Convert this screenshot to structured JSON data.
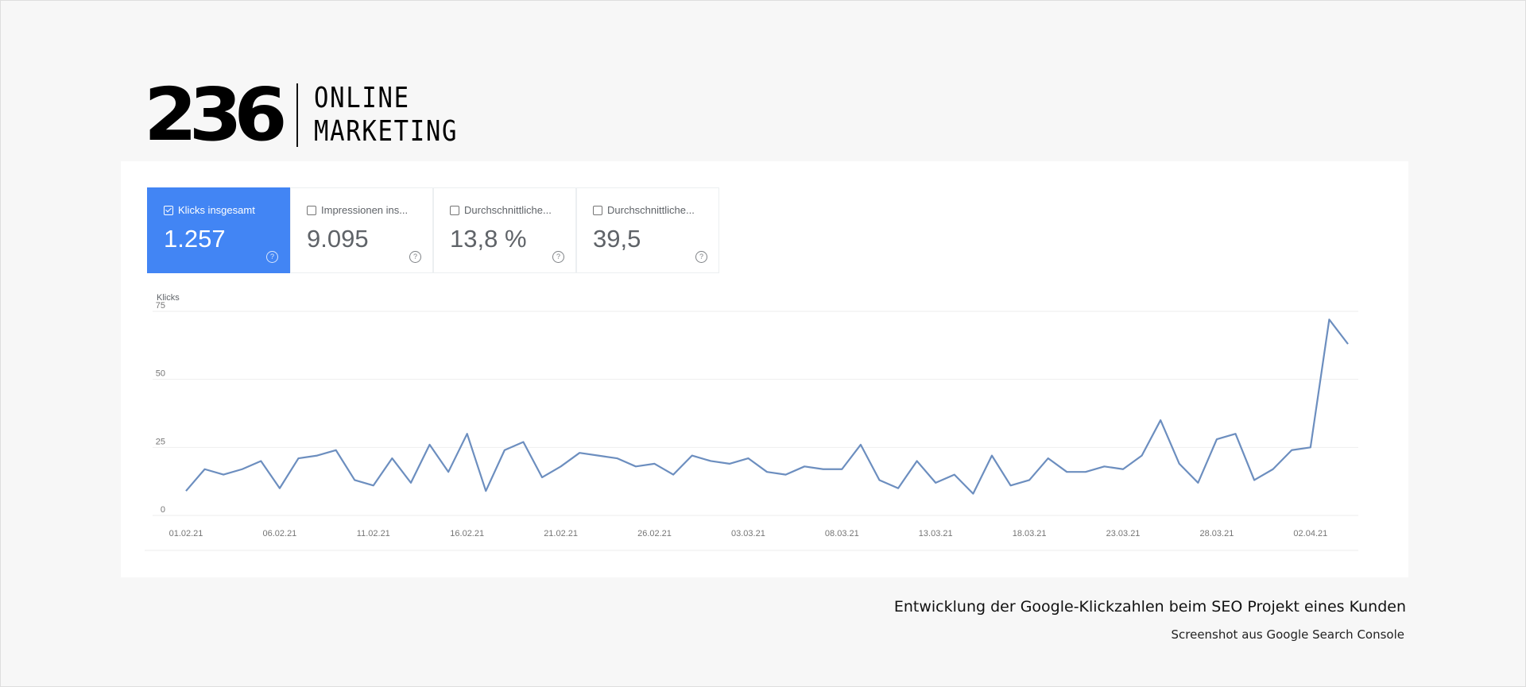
{
  "brand": {
    "number": "236",
    "line1": "ONLINE",
    "line2": "MARKETING"
  },
  "tabs": [
    {
      "label": "Klicks insgesamt",
      "value": "1.257",
      "checked": true
    },
    {
      "label": "Impressionen ins...",
      "value": "9.095",
      "checked": false
    },
    {
      "label": "Durchschnittliche...",
      "value": "13,8 %",
      "checked": false
    },
    {
      "label": "Durchschnittliche...",
      "value": "39,5",
      "checked": false
    }
  ],
  "colors": {
    "accent": "#4285f4",
    "line": "#6c8ebf",
    "grid": "#eeeeee"
  },
  "chart_data": {
    "type": "line",
    "ylabel": "Klicks",
    "ylim": [
      0,
      75
    ],
    "yticks": [
      0,
      25,
      50,
      75
    ],
    "grid": true,
    "x_start": "01.02.21",
    "x_end": "04.04.21",
    "xtick_labels": [
      "01.02.21",
      "06.02.21",
      "11.02.21",
      "16.02.21",
      "21.02.21",
      "26.02.21",
      "03.03.21",
      "08.03.21",
      "13.03.21",
      "18.03.21",
      "23.03.21",
      "28.03.21",
      "02.04.21"
    ],
    "values": [
      9,
      17,
      15,
      17,
      20,
      10,
      21,
      22,
      24,
      13,
      11,
      21,
      12,
      26,
      16,
      30,
      9,
      24,
      27,
      14,
      18,
      23,
      22,
      21,
      18,
      19,
      15,
      22,
      20,
      19,
      21,
      16,
      15,
      18,
      17,
      17,
      26,
      13,
      10,
      20,
      12,
      15,
      8,
      22,
      11,
      13,
      21,
      16,
      16,
      18,
      17,
      22,
      35,
      19,
      12,
      28,
      30,
      13,
      17,
      24,
      25,
      72,
      63
    ]
  },
  "caption": "Entwicklung der Google-Klickzahlen beim SEO Projekt eines Kunden",
  "source": "Screenshot aus Google Search Console"
}
